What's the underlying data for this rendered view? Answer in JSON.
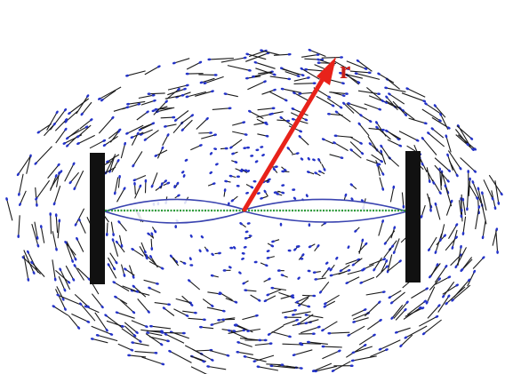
{
  "vector_label": "r"
}
